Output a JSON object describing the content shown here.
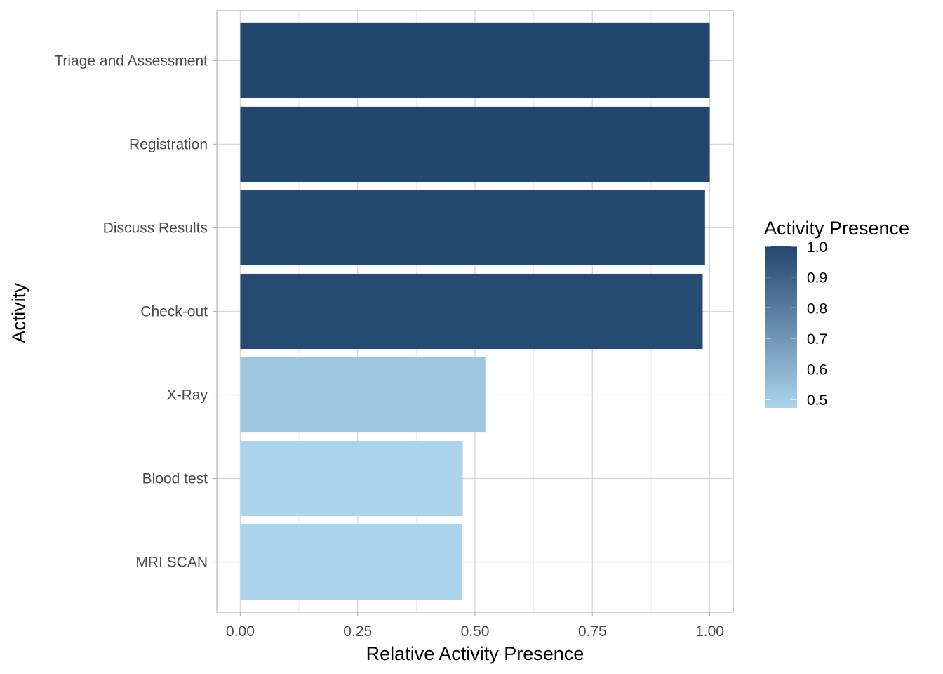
{
  "chart_data": {
    "type": "bar",
    "orientation": "horizontal",
    "xlabel": "Relative Activity Presence",
    "ylabel": "Activity",
    "xlim": [
      -0.05,
      1.05
    ],
    "x_ticks": [
      "0.00",
      "0.25",
      "0.50",
      "0.75",
      "1.00"
    ],
    "x_tick_values": [
      0,
      0.25,
      0.5,
      0.75,
      1.0
    ],
    "grid": true,
    "categories": [
      "Triage and Assessment",
      "Registration",
      "Discuss Results",
      "Check-out",
      "X-Ray",
      "Blood test",
      "MRI SCAN"
    ],
    "values": [
      1.0,
      1.0,
      0.99,
      0.985,
      0.522,
      0.474,
      0.473
    ],
    "legend": {
      "title": "Activity Presence",
      "position": "right",
      "labels": [
        "1.0",
        "0.9",
        "0.8",
        "0.7",
        "0.6",
        "0.5"
      ],
      "label_values": [
        1.0,
        0.9,
        0.8,
        0.7,
        0.6,
        0.5
      ],
      "range": [
        0.473,
        1.0
      ],
      "color_low": "#abd4ec",
      "color_high": "#23466f"
    }
  }
}
